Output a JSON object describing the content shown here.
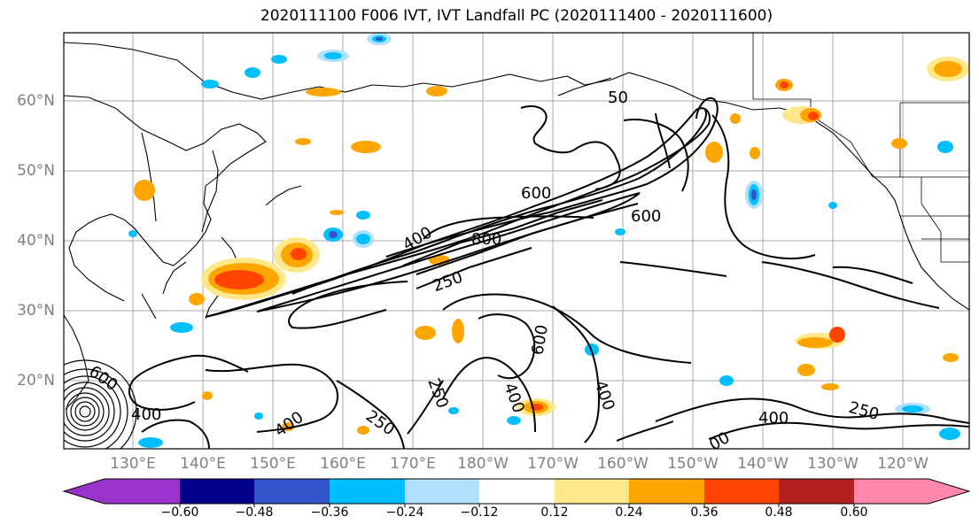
{
  "title": "2020111100 F006 IVT, IVT Landfall PC (2020111400 - 2020111600)",
  "latitude_labels": [
    "60°N",
    "50°N",
    "40°N",
    "30°N",
    "20°N"
  ],
  "longitude_labels": [
    "130°E",
    "140°E",
    "150°E",
    "160°E",
    "170°E",
    "180°W",
    "170°W",
    "160°W",
    "150°W",
    "140°W",
    "130°W",
    "120°W"
  ],
  "contour_labels": [
    "50",
    "600",
    "600",
    "400",
    "800",
    "250",
    "600",
    "250",
    "400",
    "400",
    "600",
    "400",
    "400",
    "250",
    "400",
    "250",
    "00"
  ],
  "colorbar": {
    "ticks": [
      "−0.60",
      "−0.48",
      "−0.36",
      "−0.24",
      "−0.12",
      "0.12",
      "0.24",
      "0.36",
      "0.48",
      "0.60"
    ],
    "colors": [
      "#9933cc",
      "#000088",
      "#3355cc",
      "#00bfff",
      "#b0e0ff",
      "#ffffff",
      "#ffe88a",
      "#ffa500",
      "#ff4500",
      "#b22222",
      "#ff88aa"
    ]
  },
  "colors": {
    "positive_light": "#ffe88a",
    "positive_mid": "#ffa500",
    "positive_strong": "#ff4500",
    "negative_light": "#b0e0ff",
    "negative_mid": "#00bfff",
    "negative_strong": "#3355cc",
    "negative_deep": "#000088"
  }
}
